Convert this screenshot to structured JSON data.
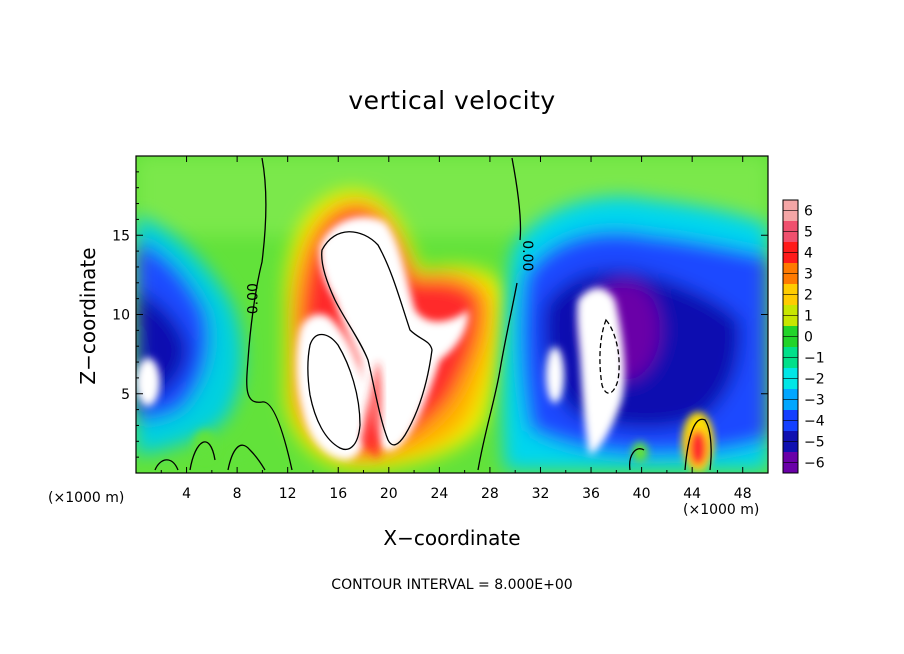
{
  "chart_data": {
    "type": "heatmap",
    "title": "vertical velocity",
    "xlabel": "X−coordinate",
    "ylabel": "Z−coordinate",
    "x_unit_left": "(×1000 m)",
    "x_unit_right": "(×1000 m)",
    "xlim": [
      0,
      50
    ],
    "ylim": [
      0,
      20
    ],
    "x_ticks": [
      4,
      8,
      12,
      16,
      20,
      24,
      28,
      32,
      36,
      40,
      44,
      48
    ],
    "x_tick_labels": [
      "4",
      "8",
      "12",
      "16",
      "20",
      "24",
      "28",
      "32",
      "36",
      "40",
      "44",
      "48"
    ],
    "y_ticks": [
      5,
      10,
      15
    ],
    "y_tick_labels": [
      "5",
      "10",
      "15"
    ],
    "colorbar": {
      "levels": [
        6,
        5,
        4,
        3,
        2,
        1,
        0,
        -1,
        -2,
        -3,
        -4,
        -5,
        -6
      ],
      "labels": [
        "6",
        "5",
        "4",
        "3",
        "2",
        "1",
        "0",
        "−1",
        "−2",
        "−3",
        "−4",
        "−5",
        "−6"
      ],
      "colors": [
        "#f4a6a6",
        "#f0506e",
        "#ff1a1a",
        "#ff7a00",
        "#ffcc00",
        "#c8e600",
        "#22d42a",
        "#00e08a",
        "#00e6e6",
        "#00a6ff",
        "#1440ff",
        "#1010b0",
        "#6a00a8"
      ]
    },
    "contour_labels": [
      {
        "text": "0.00",
        "x": 9.6,
        "y": 11.0
      },
      {
        "text": "0.00",
        "x": 30.6,
        "y": 13.7
      }
    ],
    "field_features": [
      {
        "kind": "updraft",
        "peak": ">6",
        "x": 17.5,
        "y": 12.5
      },
      {
        "kind": "updraft",
        "peak": ">6",
        "x": 16.0,
        "y": 5.5
      },
      {
        "kind": "downdraft",
        "peak": "<-6",
        "x": 37.0,
        "y": 7.5
      },
      {
        "kind": "downdraft",
        "peak": "<-6",
        "x": 1.0,
        "y": 5.5
      },
      {
        "kind": "updraft",
        "peak": "5",
        "x": 44.5,
        "y": 1.5
      }
    ],
    "contour_interval_text": "CONTOUR INTERVAL = 8.000E+00",
    "colors": {
      "background_field": "#5ee03a",
      "saturated_high": "#ffffff",
      "contour_line": "#000000"
    }
  }
}
